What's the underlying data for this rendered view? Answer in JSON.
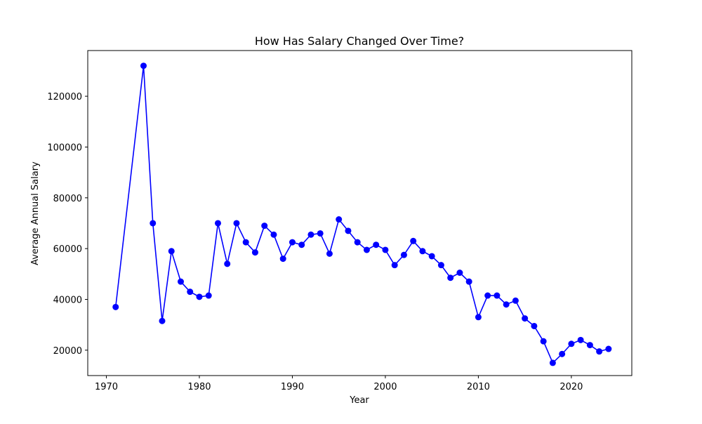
{
  "chart_data": {
    "type": "line",
    "title": "How Has Salary Changed Over Time?",
    "xlabel": "Year",
    "ylabel": "Average Annual Salary",
    "xlim": [
      1968,
      2026.5
    ],
    "ylim": [
      10000,
      138000
    ],
    "xticks": [
      1970,
      1980,
      1990,
      2000,
      2010,
      2020
    ],
    "yticks": [
      20000,
      40000,
      60000,
      80000,
      100000,
      120000
    ],
    "grid": false,
    "line_color": "#0000ff",
    "marker_color": "#0000ff",
    "marker": "circle",
    "x": [
      1971,
      1974,
      1975,
      1976,
      1977,
      1978,
      1979,
      1980,
      1981,
      1982,
      1983,
      1984,
      1985,
      1986,
      1987,
      1988,
      1989,
      1990,
      1991,
      1992,
      1993,
      1994,
      1995,
      1996,
      1997,
      1998,
      1999,
      2000,
      2001,
      2002,
      2003,
      2004,
      2005,
      2006,
      2007,
      2008,
      2009,
      2010,
      2011,
      2012,
      2013,
      2014,
      2015,
      2016,
      2017,
      2018,
      2019,
      2020,
      2021,
      2022,
      2023,
      2024
    ],
    "y": [
      37000,
      132000,
      70000,
      31500,
      59000,
      47000,
      43000,
      41000,
      41500,
      70000,
      54000,
      70000,
      62500,
      58500,
      69000,
      65500,
      56000,
      62500,
      61500,
      65500,
      66000,
      58000,
      71500,
      67000,
      62500,
      59500,
      61500,
      59500,
      53500,
      57500,
      63000,
      59000,
      57000,
      53500,
      48500,
      50500,
      47000,
      33000,
      41500,
      41500,
      38000,
      39500,
      32500,
      29500,
      23500,
      15000,
      18500,
      22500,
      24000,
      22000,
      19500,
      20500
    ]
  }
}
